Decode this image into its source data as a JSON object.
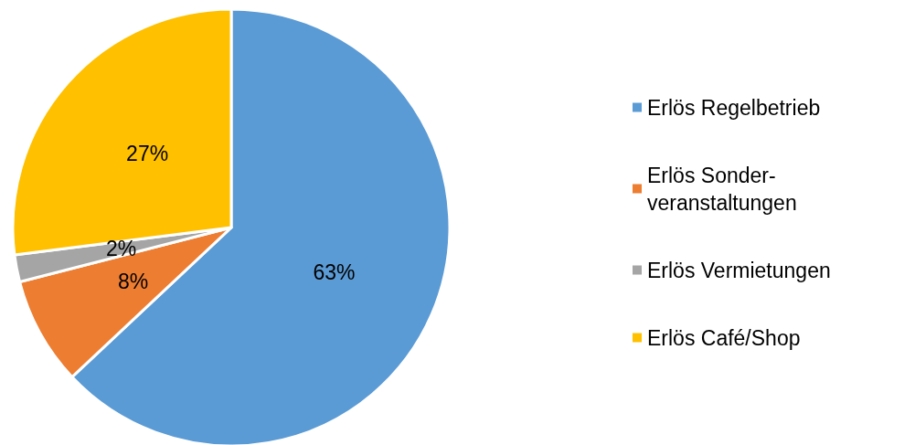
{
  "chart_data": {
    "type": "pie",
    "categories": [
      "Erlös Regelbetrieb",
      "Erlös Sonder-\nveranstaltungen",
      "Erlös Vermietungen",
      "Erlös Café/Shop"
    ],
    "values": [
      63,
      8,
      2,
      27
    ],
    "colors": [
      "#5b9bd5",
      "#ed7d31",
      "#a5a5a5",
      "#ffc000"
    ],
    "value_labels": [
      "63%",
      "8%",
      "2%",
      "27%"
    ],
    "legend": "right"
  }
}
